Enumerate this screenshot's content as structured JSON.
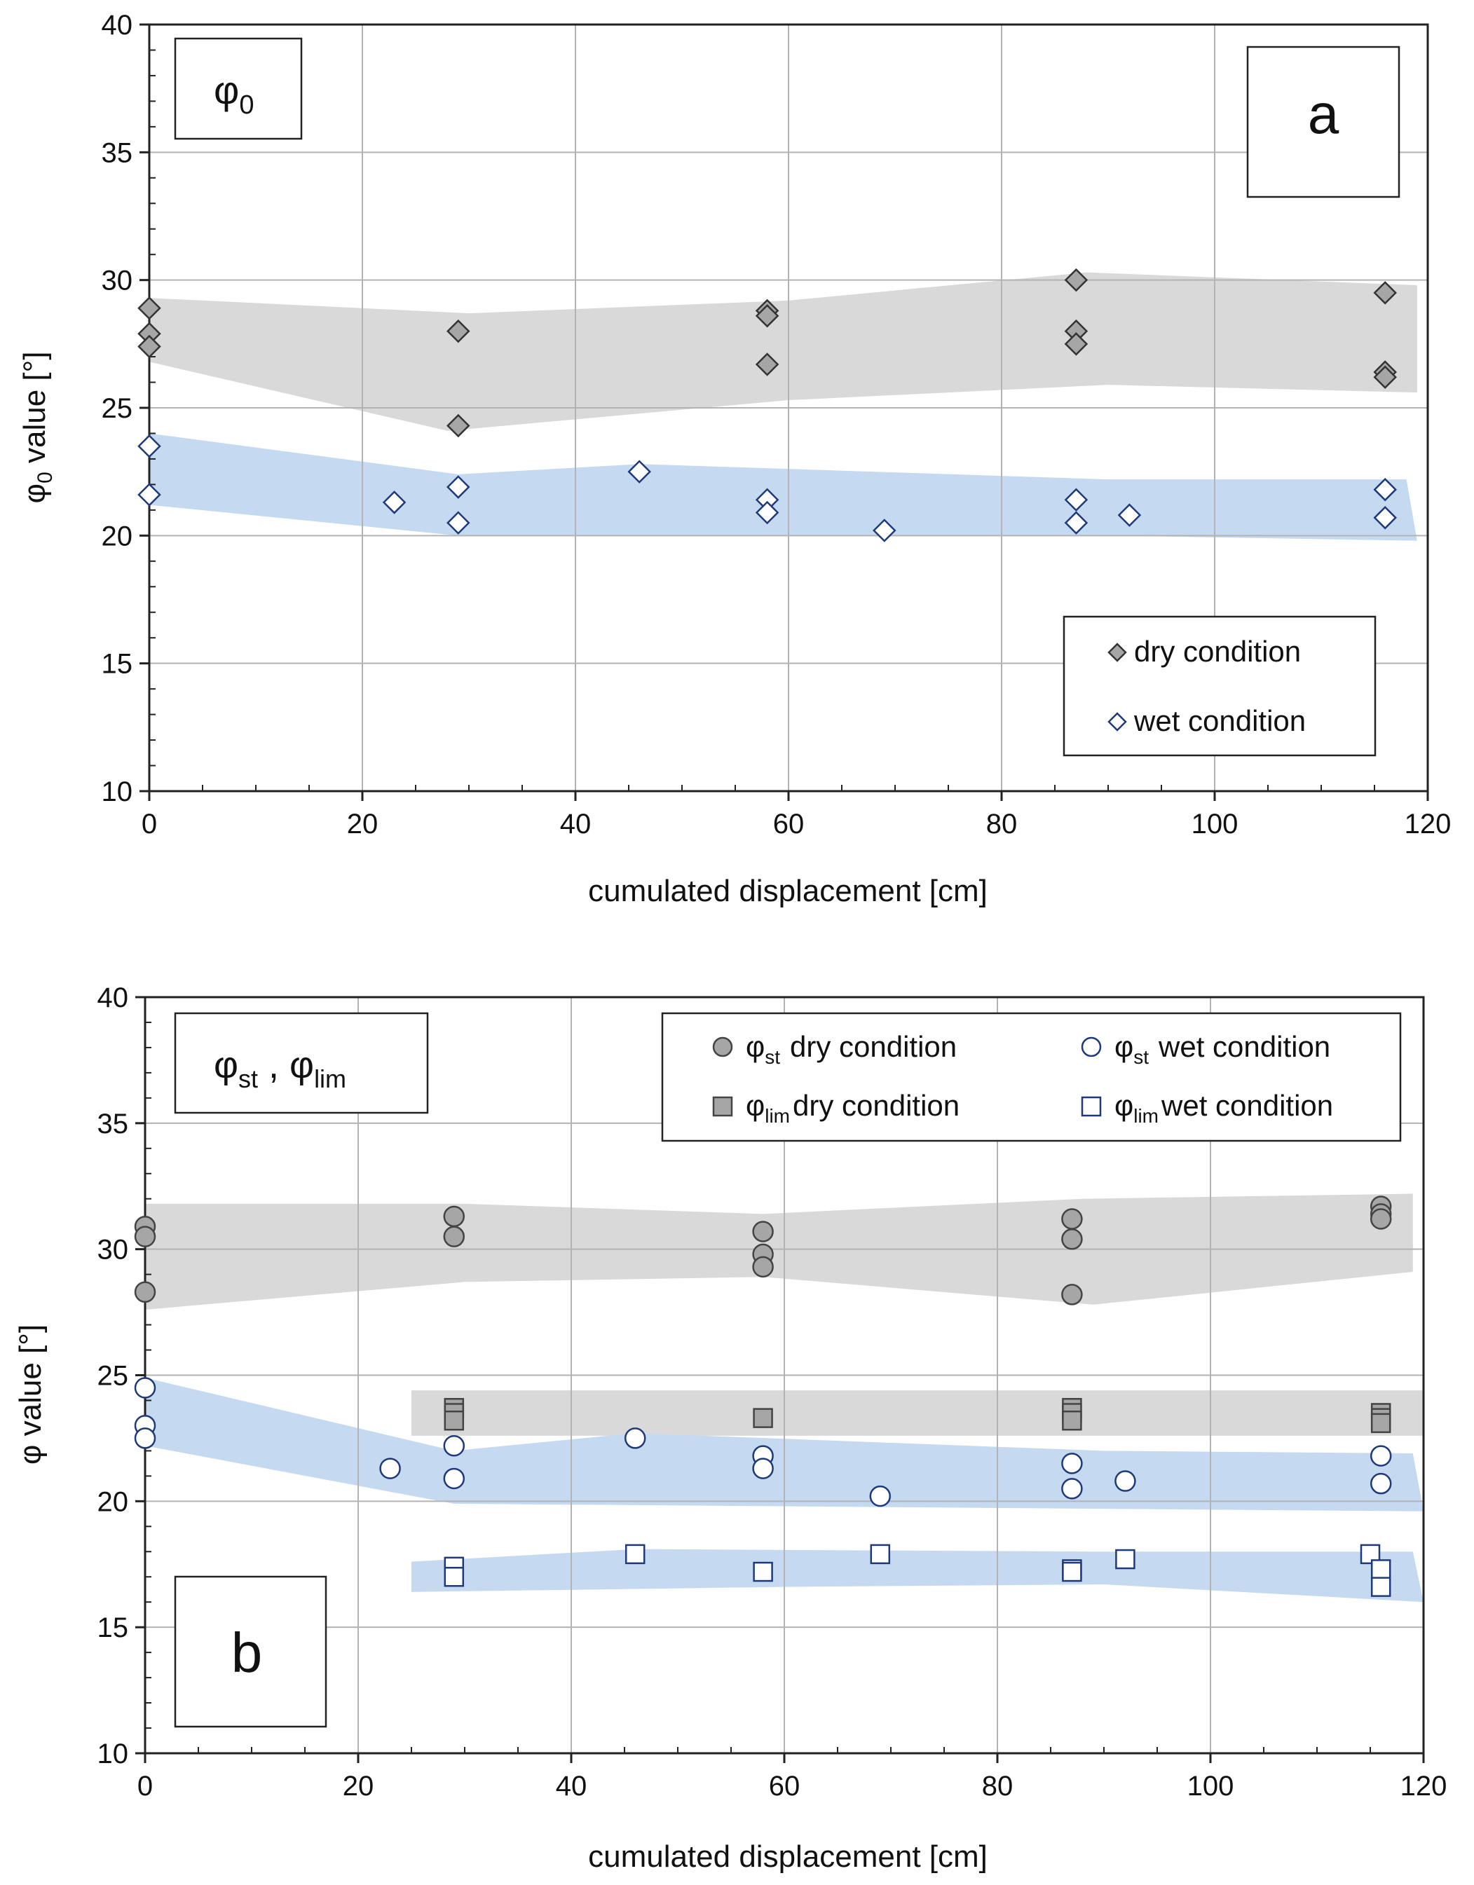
{
  "chart_data": [
    {
      "id": "a",
      "type": "scatter",
      "panel_letter": "a",
      "title_box": {
        "base": "φ",
        "sub": "0"
      },
      "xlabel": "cumulated displacement [cm]",
      "ylabel": {
        "base": "φ",
        "sub": "0",
        "rest": " value [°]"
      },
      "xlim": [
        0,
        120
      ],
      "ylim": [
        10,
        40
      ],
      "xticks": [
        0,
        20,
        40,
        60,
        80,
        100,
        120
      ],
      "yticks": [
        10,
        15,
        20,
        25,
        30,
        35,
        40
      ],
      "xtick_labels": [
        "0",
        "20",
        "40",
        "60",
        "80",
        "100",
        "120"
      ],
      "ytick_labels": [
        "10",
        "15",
        "20",
        "25",
        "30",
        "35",
        "40"
      ],
      "grid": true,
      "legend_position": "bottom-right",
      "legend": [
        {
          "label": "dry condition",
          "series": "dry"
        },
        {
          "label": "wet condition",
          "series": "wet"
        }
      ],
      "bands": [
        {
          "color": "#d9d9d9",
          "upper": [
            [
              0,
              29.3
            ],
            [
              30,
              28.7
            ],
            [
              60,
              29.2
            ],
            [
              88,
              30.3
            ],
            [
              119,
              29.8
            ]
          ],
          "lower": [
            [
              0,
              26.8
            ],
            [
              28,
              24.1
            ],
            [
              60,
              25.3
            ],
            [
              90,
              25.9
            ],
            [
              119,
              25.6
            ]
          ]
        },
        {
          "color": "#c5daf0",
          "upper": [
            [
              0,
              24.0
            ],
            [
              29,
              22.4
            ],
            [
              46,
              22.8
            ],
            [
              90,
              22.2
            ],
            [
              118,
              22.2
            ]
          ],
          "lower": [
            [
              0,
              21.2
            ],
            [
              29,
              20.0
            ],
            [
              90,
              20.0
            ],
            [
              119,
              19.8
            ]
          ]
        }
      ],
      "series": [
        {
          "name": "dry",
          "marker": "diamond",
          "fill": "#a6a6a6",
          "stroke": "#333333",
          "points": [
            [
              0,
              28.9
            ],
            [
              0,
              27.9
            ],
            [
              0,
              27.4
            ],
            [
              29,
              28.0
            ],
            [
              29,
              24.3
            ],
            [
              58,
              28.8
            ],
            [
              58,
              28.6
            ],
            [
              58,
              26.7
            ],
            [
              87,
              30.0
            ],
            [
              87,
              28.0
            ],
            [
              87,
              27.5
            ],
            [
              116,
              29.5
            ],
            [
              116,
              26.4
            ],
            [
              116,
              26.2
            ]
          ]
        },
        {
          "name": "wet",
          "marker": "diamond",
          "fill": "#ffffff",
          "stroke": "#1f3a7a",
          "points": [
            [
              0,
              23.5
            ],
            [
              0,
              21.6
            ],
            [
              23,
              21.3
            ],
            [
              29,
              21.9
            ],
            [
              29,
              20.5
            ],
            [
              46,
              22.5
            ],
            [
              58,
              21.4
            ],
            [
              58,
              20.9
            ],
            [
              69,
              20.2
            ],
            [
              87,
              21.4
            ],
            [
              87,
              20.5
            ],
            [
              92,
              20.8
            ],
            [
              116,
              21.8
            ],
            [
              116,
              20.7
            ]
          ]
        }
      ]
    },
    {
      "id": "b",
      "type": "scatter",
      "panel_letter": "b",
      "title_box": {
        "a_base": "φ",
        "a_sub": "st",
        "sep": " , ",
        "b_base": "φ",
        "b_sub": "lim"
      },
      "xlabel": "cumulated displacement [cm]",
      "ylabel": {
        "base": "φ",
        "rest": " value [°]"
      },
      "xlim": [
        0,
        120
      ],
      "ylim": [
        10,
        40
      ],
      "xticks": [
        0,
        20,
        40,
        60,
        80,
        100,
        120
      ],
      "yticks": [
        10,
        15,
        20,
        25,
        30,
        35,
        40
      ],
      "xtick_labels": [
        "0",
        "20",
        "40",
        "60",
        "80",
        "100",
        "120"
      ],
      "ytick_labels": [
        "10",
        "15",
        "20",
        "25",
        "30",
        "35",
        "40"
      ],
      "grid": true,
      "legend_position": "top-right",
      "legend": [
        {
          "sym": "φ",
          "sub": "st",
          "label": "dry condition",
          "series": "st_dry"
        },
        {
          "sym": "φ",
          "sub": "st",
          "label": "wet condition",
          "series": "st_wet"
        },
        {
          "sym": "φ",
          "sub": "lim",
          "label": "dry condition",
          "series": "lim_dry"
        },
        {
          "sym": "φ",
          "sub": "lim",
          "label": "wet condition",
          "series": "lim_wet"
        }
      ],
      "bands": [
        {
          "color": "#d9d9d9",
          "upper": [
            [
              0,
              31.8
            ],
            [
              30,
              31.8
            ],
            [
              58,
              31.4
            ],
            [
              88,
              32.0
            ],
            [
              119,
              32.2
            ]
          ],
          "lower": [
            [
              0,
              27.6
            ],
            [
              30,
              28.7
            ],
            [
              58,
              28.9
            ],
            [
              89,
              27.8
            ],
            [
              119,
              29.1
            ]
          ]
        },
        {
          "color": "#d9d9d9",
          "upper": [
            [
              25,
              24.4
            ],
            [
              120,
              24.4
            ]
          ],
          "lower": [
            [
              25,
              22.6
            ],
            [
              120,
              22.6
            ]
          ]
        },
        {
          "color": "#c5daf0",
          "upper": [
            [
              0,
              24.9
            ],
            [
              29,
              22.0
            ],
            [
              46,
              22.7
            ],
            [
              90,
              22.0
            ],
            [
              119,
              21.9
            ]
          ],
          "lower": [
            [
              0,
              22.2
            ],
            [
              29,
              19.9
            ],
            [
              90,
              19.7
            ],
            [
              120,
              19.6
            ]
          ]
        },
        {
          "color": "#c5daf0",
          "upper": [
            [
              25,
              17.6
            ],
            [
              46,
              18.1
            ],
            [
              90,
              18.0
            ],
            [
              119,
              18.0
            ]
          ],
          "lower": [
            [
              25,
              16.4
            ],
            [
              60,
              16.6
            ],
            [
              90,
              16.7
            ],
            [
              120,
              16.0
            ]
          ]
        }
      ],
      "series": [
        {
          "name": "st_dry",
          "marker": "circle",
          "fill": "#a6a6a6",
          "stroke": "#444444",
          "points": [
            [
              0,
              30.9
            ],
            [
              0,
              30.5
            ],
            [
              0,
              28.3
            ],
            [
              29,
              31.3
            ],
            [
              29,
              30.5
            ],
            [
              58,
              30.7
            ],
            [
              58,
              29.8
            ],
            [
              58,
              29.3
            ],
            [
              87,
              31.2
            ],
            [
              87,
              30.4
            ],
            [
              87,
              28.2
            ],
            [
              116,
              31.7
            ],
            [
              116,
              31.4
            ],
            [
              116,
              31.2
            ]
          ]
        },
        {
          "name": "st_wet",
          "marker": "circle",
          "fill": "#ffffff",
          "stroke": "#1f3a7a",
          "points": [
            [
              0,
              24.5
            ],
            [
              0,
              23.0
            ],
            [
              0,
              22.5
            ],
            [
              23,
              21.3
            ],
            [
              29,
              22.2
            ],
            [
              29,
              20.9
            ],
            [
              46,
              22.5
            ],
            [
              58,
              21.8
            ],
            [
              58,
              21.3
            ],
            [
              69,
              20.2
            ],
            [
              87,
              21.5
            ],
            [
              87,
              20.5
            ],
            [
              92,
              20.8
            ],
            [
              116,
              21.8
            ],
            [
              116,
              20.7
            ]
          ]
        },
        {
          "name": "lim_dry",
          "marker": "square",
          "fill": "#a6a6a6",
          "stroke": "#444444",
          "points": [
            [
              29,
              23.7
            ],
            [
              29,
              23.5
            ],
            [
              29,
              23.2
            ],
            [
              58,
              23.3
            ],
            [
              87,
              23.7
            ],
            [
              87,
              23.5
            ],
            [
              87,
              23.2
            ],
            [
              116,
              23.5
            ],
            [
              116,
              23.3
            ],
            [
              116,
              23.1
            ]
          ]
        },
        {
          "name": "lim_wet",
          "marker": "square",
          "fill": "#ffffff",
          "stroke": "#1f3a7a",
          "points": [
            [
              29,
              17.4
            ],
            [
              29,
              17.0
            ],
            [
              46,
              17.9
            ],
            [
              58,
              17.2
            ],
            [
              69,
              17.9
            ],
            [
              87,
              17.3
            ],
            [
              87,
              17.2
            ],
            [
              92,
              17.7
            ],
            [
              115,
              17.9
            ],
            [
              116,
              17.3
            ],
            [
              116,
              16.6
            ]
          ]
        }
      ]
    }
  ]
}
